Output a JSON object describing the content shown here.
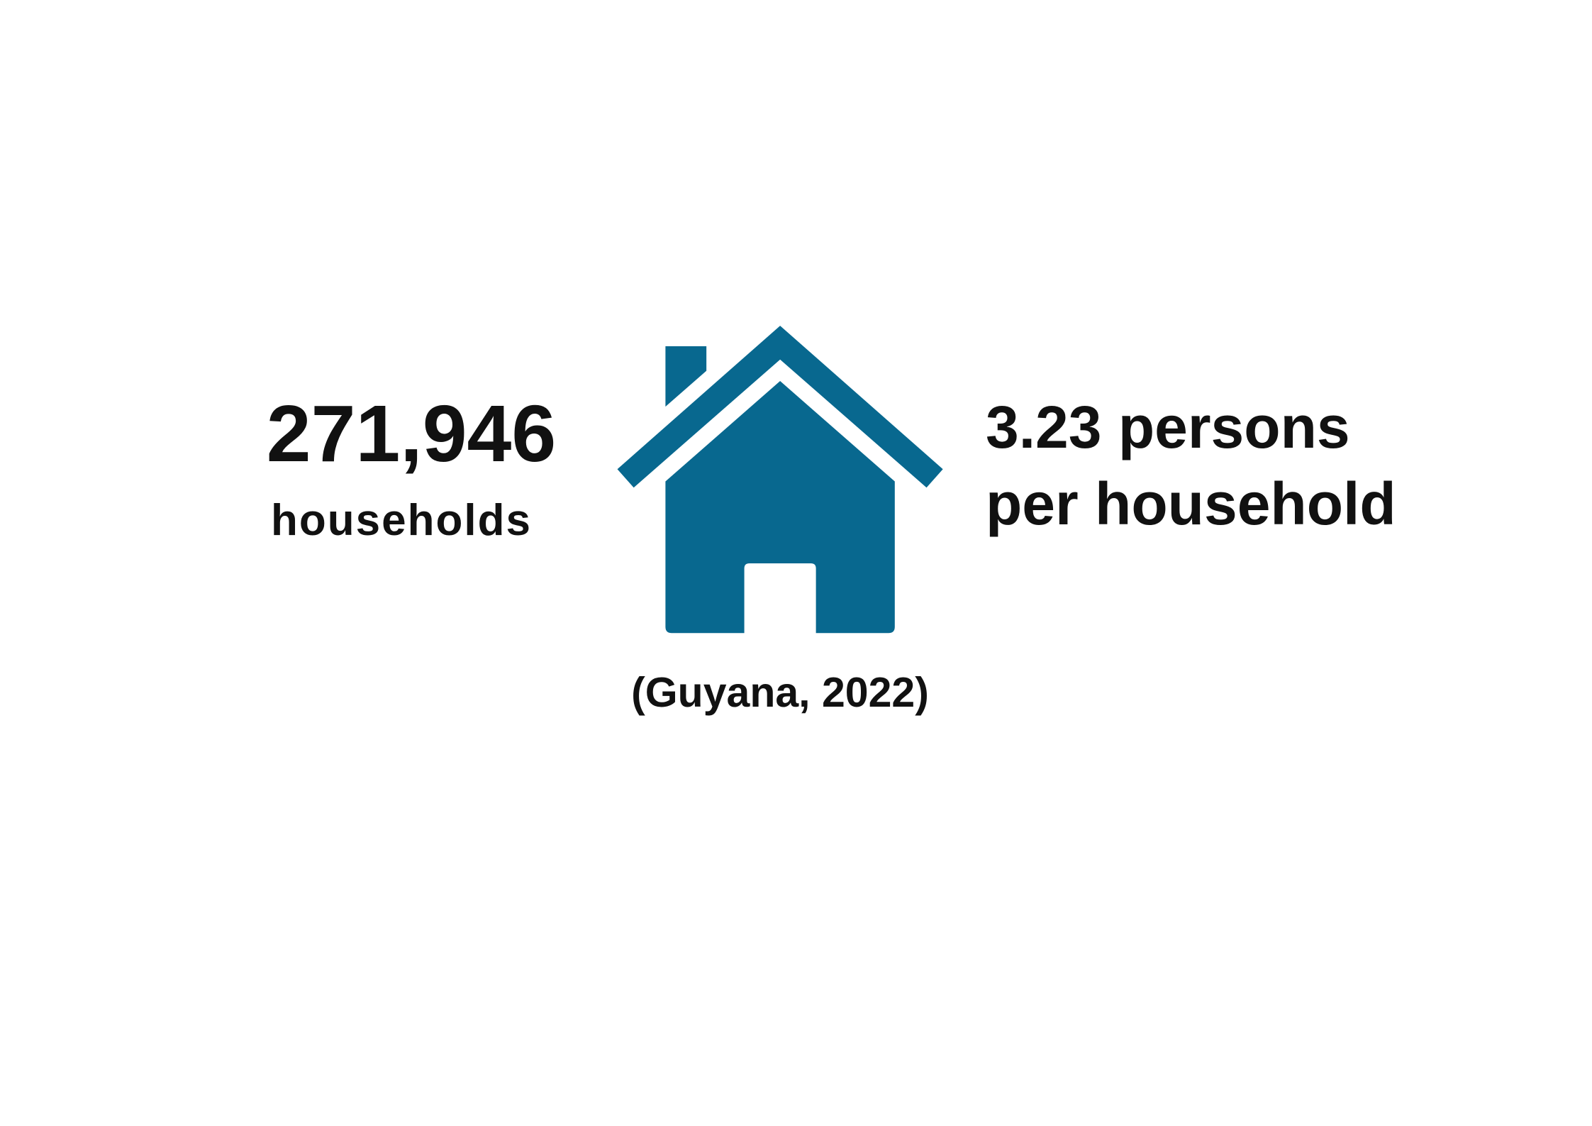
{
  "stat_left": {
    "value": "271,946",
    "label": "households"
  },
  "stat_right": {
    "line1": "3.23 persons",
    "line2": "per household"
  },
  "caption": "(Guyana, 2022)"
}
